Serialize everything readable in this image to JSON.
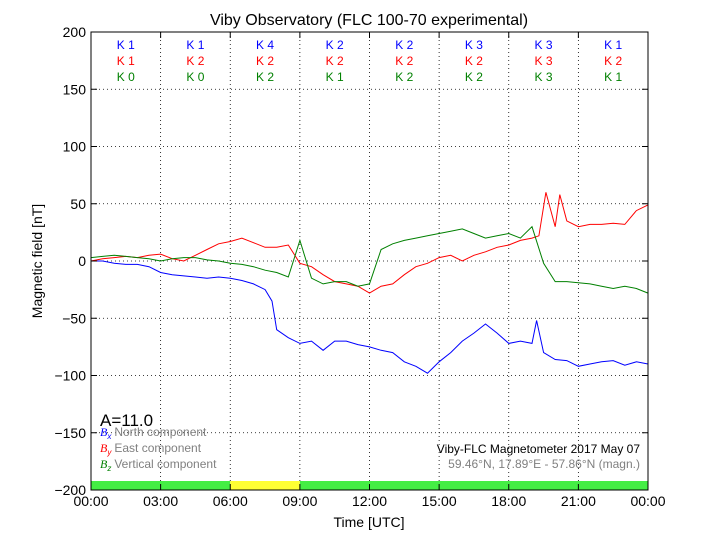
{
  "chart_data": {
    "type": "line",
    "title": "Viby Observatory (FLC 100-70 experimental)",
    "xlabel": "Time [UTC]",
    "ylabel": "Magnetic field [nT]",
    "xlim": [
      0,
      24
    ],
    "ylim": [
      -200,
      200
    ],
    "grid": true,
    "x_ticks": [
      {
        "v": 0,
        "label": "00:00"
      },
      {
        "v": 3,
        "label": "03:00"
      },
      {
        "v": 6,
        "label": "06:00"
      },
      {
        "v": 9,
        "label": "09:00"
      },
      {
        "v": 12,
        "label": "12:00"
      },
      {
        "v": 15,
        "label": "15:00"
      },
      {
        "v": 18,
        "label": "18:00"
      },
      {
        "v": 21,
        "label": "21:00"
      },
      {
        "v": 24,
        "label": "00:00"
      }
    ],
    "y_ticks": [
      {
        "v": 200,
        "label": "200"
      },
      {
        "v": 150,
        "label": "150"
      },
      {
        "v": 100,
        "label": "100"
      },
      {
        "v": 50,
        "label": "50"
      },
      {
        "v": 0,
        "label": "0"
      },
      {
        "v": -50,
        "label": "−50"
      },
      {
        "v": -100,
        "label": "−100"
      },
      {
        "v": -150,
        "label": "−150"
      },
      {
        "v": -200,
        "label": "−200"
      }
    ],
    "k_index_rows": [
      {
        "color": "#0000ff",
        "values": [
          "K 1",
          "K 1",
          "K 4",
          "K 2",
          "K 2",
          "K 3",
          "K 3",
          "K 1"
        ]
      },
      {
        "color": "#ff0000",
        "values": [
          "K 1",
          "K 2",
          "K 2",
          "K 2",
          "K 2",
          "K 2",
          "K 3",
          "K 2"
        ]
      },
      {
        "color": "#008000",
        "values": [
          "K 0",
          "K 0",
          "K 2",
          "K 1",
          "K 2",
          "K 2",
          "K 3",
          "K 1"
        ]
      }
    ],
    "status_bar": [
      {
        "from": 0,
        "to": 6,
        "color": "#44ee44"
      },
      {
        "from": 6,
        "to": 9,
        "color": "#ffff33"
      },
      {
        "from": 9,
        "to": 24,
        "color": "#44ee44"
      }
    ],
    "a_index": "A=11.0",
    "legend_position": "lower-left",
    "series": [
      {
        "name": "North component",
        "symbol": "B",
        "subscript": "x",
        "color": "#0000ff",
        "x": [
          0,
          0.5,
          1,
          1.5,
          2,
          2.5,
          3,
          3.5,
          4,
          4.5,
          5,
          5.5,
          6,
          6.5,
          7,
          7.5,
          7.8,
          8,
          8.5,
          9,
          9.5,
          10,
          10.5,
          11,
          11.5,
          12,
          12.5,
          13,
          13.5,
          14,
          14.5,
          15,
          15.5,
          16,
          16.5,
          17,
          17.5,
          18,
          18.5,
          19,
          19.2,
          19.5,
          20,
          20.5,
          21,
          21.5,
          22,
          22.5,
          23,
          23.5,
          24
        ],
        "y": [
          0,
          0,
          -2,
          -3,
          -3,
          -5,
          -10,
          -12,
          -13,
          -14,
          -15,
          -14,
          -15,
          -17,
          -20,
          -25,
          -35,
          -60,
          -67,
          -72,
          -70,
          -78,
          -70,
          -70,
          -73,
          -75,
          -78,
          -80,
          -88,
          -92,
          -98,
          -88,
          -80,
          -70,
          -63,
          -55,
          -63,
          -72,
          -70,
          -72,
          -52,
          -80,
          -86,
          -87,
          -92,
          -90,
          -88,
          -87,
          -91,
          -88,
          -90
        ]
      },
      {
        "name": "East component",
        "symbol": "B",
        "subscript": "y",
        "color": "#ff0000",
        "x": [
          0,
          0.5,
          1,
          1.5,
          2,
          2.5,
          3,
          3.5,
          4,
          4.5,
          5,
          5.5,
          6,
          6.5,
          7,
          7.5,
          8,
          8.5,
          9,
          9.5,
          10,
          10.5,
          11,
          11.5,
          12,
          12.5,
          13,
          13.5,
          14,
          14.5,
          15,
          15.5,
          16,
          16.5,
          17,
          17.5,
          18,
          18.5,
          19,
          19.3,
          19.6,
          20,
          20.2,
          20.5,
          21,
          21.5,
          22,
          22.5,
          23,
          23.5,
          24
        ],
        "y": [
          0,
          2,
          3,
          4,
          3,
          5,
          6,
          2,
          0,
          5,
          10,
          15,
          17,
          20,
          16,
          12,
          12,
          14,
          -2,
          -5,
          -12,
          -18,
          -20,
          -22,
          -28,
          -22,
          -20,
          -12,
          -5,
          -2,
          3,
          5,
          0,
          5,
          8,
          12,
          14,
          18,
          20,
          22,
          60,
          30,
          58,
          35,
          30,
          32,
          32,
          33,
          32,
          44,
          49
        ]
      },
      {
        "name": "Vertical component",
        "symbol": "B",
        "subscript": "z",
        "color": "#008000",
        "x": [
          0,
          0.5,
          1,
          1.5,
          2,
          2.5,
          3,
          3.5,
          4,
          4.5,
          5,
          5.5,
          6,
          6.5,
          7,
          7.5,
          8,
          8.5,
          9,
          9.5,
          10,
          10.5,
          11,
          11.5,
          12,
          12.5,
          13,
          13.5,
          14,
          14.5,
          15,
          15.5,
          16,
          16.5,
          17,
          17.5,
          18,
          18.5,
          19,
          19.5,
          20,
          20.5,
          21,
          21.5,
          22,
          22.5,
          23,
          23.5,
          24
        ],
        "y": [
          3,
          4,
          5,
          4,
          3,
          2,
          0,
          2,
          3,
          3,
          1,
          0,
          -2,
          -3,
          -5,
          -8,
          -10,
          -14,
          18,
          -15,
          -20,
          -18,
          -18,
          -22,
          -20,
          10,
          15,
          18,
          20,
          22,
          24,
          26,
          28,
          24,
          20,
          22,
          24,
          20,
          30,
          -2,
          -18,
          -18,
          -19,
          -20,
          -22,
          -24,
          -22,
          -24,
          -28
        ]
      }
    ],
    "info_line_1": "Viby-FLC Magnetometer 2017 May 07",
    "info_line_2": "59.46°N, 17.89°E - 57.86°N (magn.)"
  }
}
